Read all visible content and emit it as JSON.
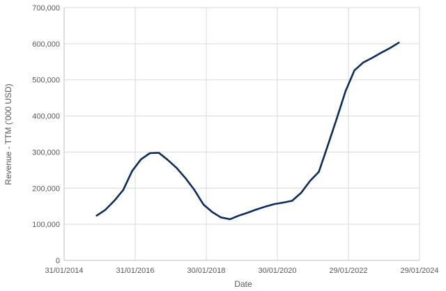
{
  "chart_data": {
    "type": "line",
    "title": "",
    "xlabel": "Date",
    "ylabel": "Revenue - TTM ('000 USD)",
    "x_axis_type": "date",
    "xlim": [
      "2014-01-31",
      "2024-01-29"
    ],
    "ylim": [
      0,
      700000
    ],
    "grid": true,
    "legend": "none",
    "x_tick_labels": [
      "31/01/2014",
      "31/01/2016",
      "30/01/2018",
      "30/01/2020",
      "29/01/2022",
      "29/01/2024"
    ],
    "x_tick_dates": [
      "2014-01-31",
      "2016-01-31",
      "2018-01-30",
      "2020-01-30",
      "2022-01-29",
      "2024-01-29"
    ],
    "y_tick_labels": [
      "0",
      "100,000",
      "200,000",
      "300,000",
      "400,000",
      "500,000",
      "600,000",
      "700,000"
    ],
    "y_tick_values": [
      0,
      100000,
      200000,
      300000,
      400000,
      500000,
      600000,
      700000
    ],
    "line_color": "#0d2a5c",
    "series": [
      {
        "points": [
          {
            "x": "2014-12-31",
            "y": 124000
          },
          {
            "x": "2015-03-31",
            "y": 140000
          },
          {
            "x": "2015-06-30",
            "y": 165000
          },
          {
            "x": "2015-09-30",
            "y": 195000
          },
          {
            "x": "2015-12-31",
            "y": 248000
          },
          {
            "x": "2016-03-31",
            "y": 280000
          },
          {
            "x": "2016-06-30",
            "y": 297000
          },
          {
            "x": "2016-09-30",
            "y": 298000
          },
          {
            "x": "2016-12-31",
            "y": 278000
          },
          {
            "x": "2017-03-31",
            "y": 256000
          },
          {
            "x": "2017-06-30",
            "y": 228000
          },
          {
            "x": "2017-09-30",
            "y": 195000
          },
          {
            "x": "2017-12-31",
            "y": 155000
          },
          {
            "x": "2018-03-31",
            "y": 134000
          },
          {
            "x": "2018-06-30",
            "y": 119000
          },
          {
            "x": "2018-09-30",
            "y": 114000
          },
          {
            "x": "2018-12-31",
            "y": 124000
          },
          {
            "x": "2019-03-31",
            "y": 132000
          },
          {
            "x": "2019-06-30",
            "y": 141000
          },
          {
            "x": "2019-09-30",
            "y": 149000
          },
          {
            "x": "2019-12-31",
            "y": 156000
          },
          {
            "x": "2020-03-31",
            "y": 160000
          },
          {
            "x": "2020-06-30",
            "y": 165000
          },
          {
            "x": "2020-09-30",
            "y": 187000
          },
          {
            "x": "2020-12-31",
            "y": 220000
          },
          {
            "x": "2021-03-31",
            "y": 245000
          },
          {
            "x": "2021-06-30",
            "y": 317000
          },
          {
            "x": "2021-09-30",
            "y": 392000
          },
          {
            "x": "2021-12-31",
            "y": 469000
          },
          {
            "x": "2022-03-31",
            "y": 526000
          },
          {
            "x": "2022-06-30",
            "y": 548000
          },
          {
            "x": "2022-09-30",
            "y": 561000
          },
          {
            "x": "2022-12-31",
            "y": 575000
          },
          {
            "x": "2023-03-31",
            "y": 588000
          },
          {
            "x": "2023-06-30",
            "y": 603000
          }
        ]
      }
    ]
  }
}
